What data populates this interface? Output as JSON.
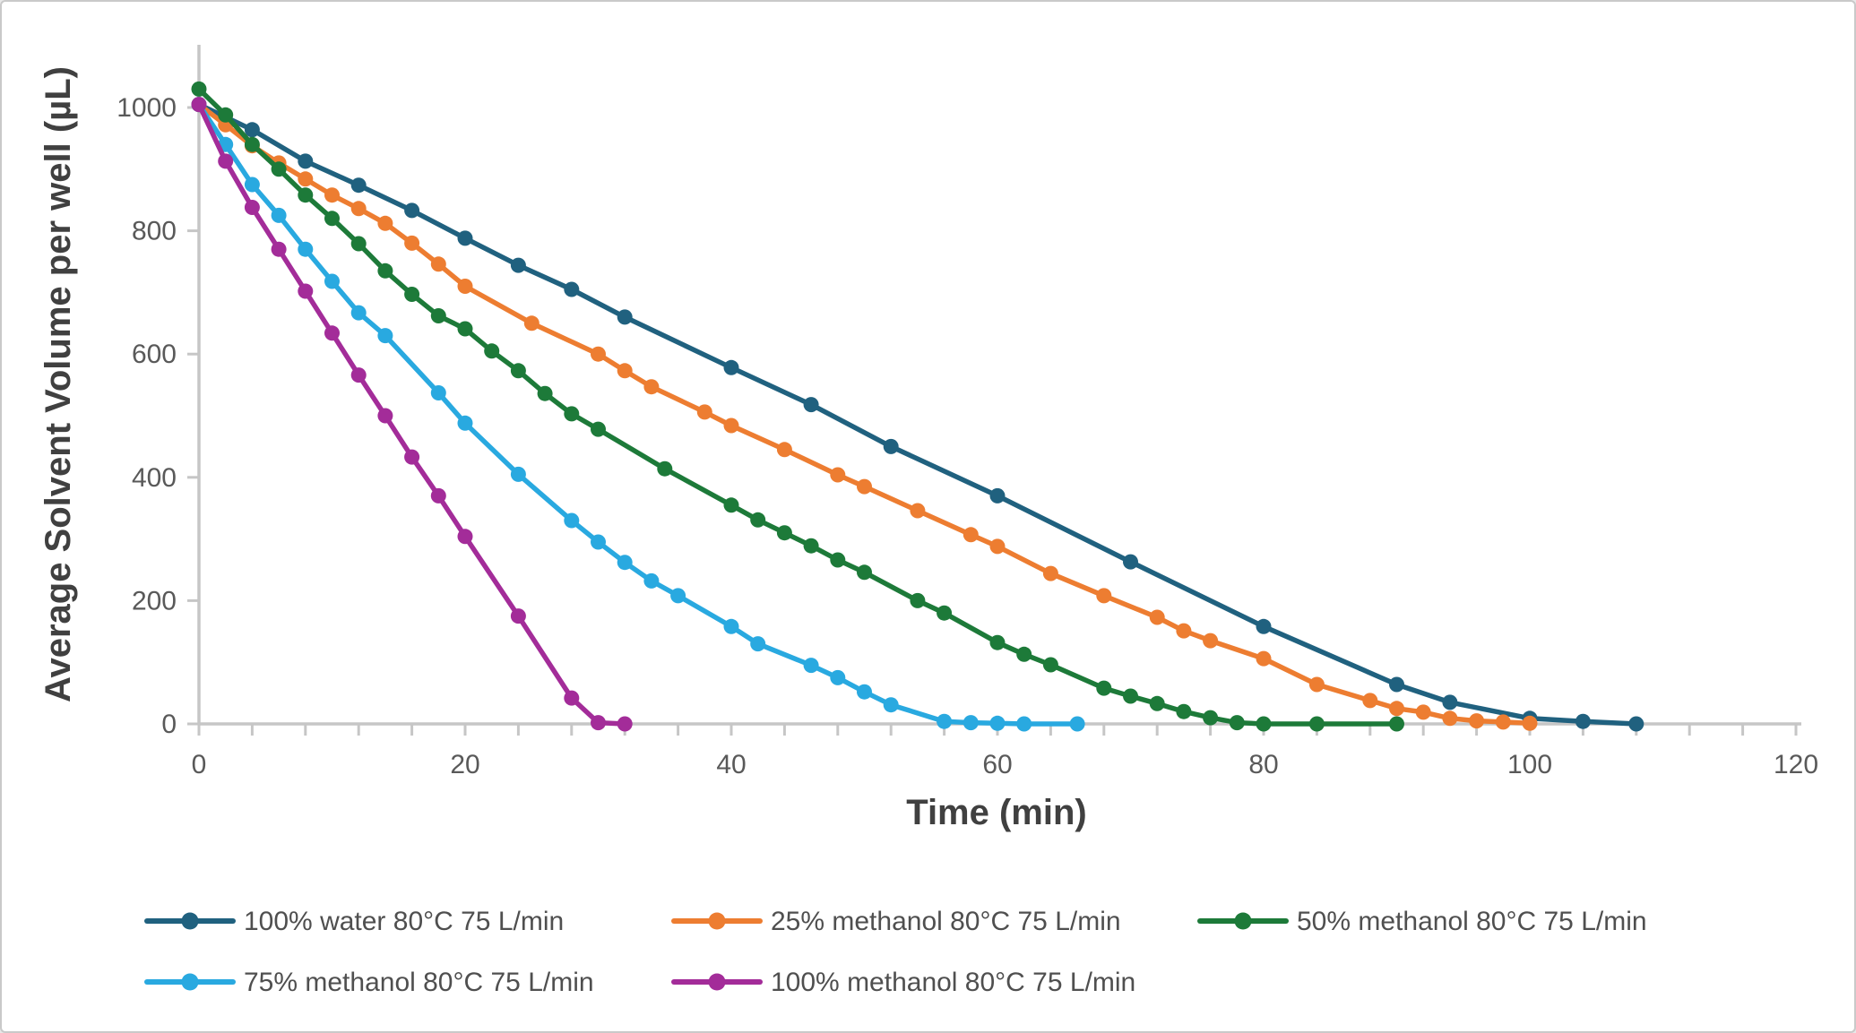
{
  "figure": {
    "background": "#ffffff",
    "border_color": "#c9c9c9"
  },
  "chart_data": {
    "type": "line",
    "title": "",
    "xlabel": "Time (min)",
    "ylabel": "Average Solvent Volume per well (µL)",
    "xlim": [
      0,
      120
    ],
    "ylim": [
      0,
      1100
    ],
    "x_major_ticks": [
      0,
      20,
      40,
      60,
      80,
      100,
      120
    ],
    "x_minor_tick_step": 4,
    "y_ticks": [
      0,
      200,
      400,
      600,
      800,
      1000
    ],
    "grid": false,
    "legend_position": "bottom-left",
    "axis_color": "#c6c6c6",
    "tick_label_color": "#595959",
    "axis_title_color": "#404040",
    "marker_style": "filled-circle",
    "series": [
      {
        "name": "100% water 80°C 75 L/min",
        "color": "#20617F",
        "points": [
          [
            0,
            1005
          ],
          [
            4,
            964
          ],
          [
            8,
            913
          ],
          [
            12,
            874
          ],
          [
            16,
            833
          ],
          [
            20,
            788
          ],
          [
            24,
            744
          ],
          [
            28,
            705
          ],
          [
            32,
            660
          ],
          [
            40,
            578
          ],
          [
            46,
            518
          ],
          [
            52,
            450
          ],
          [
            60,
            370
          ],
          [
            70,
            263
          ],
          [
            80,
            158
          ],
          [
            90,
            64
          ],
          [
            94,
            35
          ],
          [
            100,
            9
          ],
          [
            104,
            4
          ],
          [
            108,
            0
          ]
        ]
      },
      {
        "name": "25% methanol 80°C 75 L/min",
        "color": "#ED7D31",
        "points": [
          [
            0,
            1005
          ],
          [
            2,
            972
          ],
          [
            4,
            938
          ],
          [
            6,
            910
          ],
          [
            8,
            884
          ],
          [
            10,
            858
          ],
          [
            12,
            836
          ],
          [
            14,
            812
          ],
          [
            16,
            780
          ],
          [
            18,
            746
          ],
          [
            20,
            710
          ],
          [
            25,
            650
          ],
          [
            30,
            600
          ],
          [
            32,
            573
          ],
          [
            34,
            547
          ],
          [
            38,
            506
          ],
          [
            40,
            484
          ],
          [
            44,
            445
          ],
          [
            48,
            404
          ],
          [
            50,
            385
          ],
          [
            54,
            346
          ],
          [
            58,
            307
          ],
          [
            60,
            288
          ],
          [
            64,
            244
          ],
          [
            68,
            208
          ],
          [
            72,
            173
          ],
          [
            74,
            151
          ],
          [
            76,
            135
          ],
          [
            80,
            106
          ],
          [
            84,
            64
          ],
          [
            88,
            38
          ],
          [
            90,
            25
          ],
          [
            92,
            19
          ],
          [
            94,
            9
          ],
          [
            96,
            5
          ],
          [
            98,
            3
          ],
          [
            100,
            1
          ]
        ]
      },
      {
        "name": "50% methanol 80°C 75 L/min",
        "color": "#1D7A39",
        "points": [
          [
            0,
            1030
          ],
          [
            2,
            988
          ],
          [
            4,
            940
          ],
          [
            6,
            900
          ],
          [
            8,
            858
          ],
          [
            10,
            820
          ],
          [
            12,
            779
          ],
          [
            14,
            735
          ],
          [
            16,
            697
          ],
          [
            18,
            662
          ],
          [
            20,
            641
          ],
          [
            22,
            605
          ],
          [
            24,
            573
          ],
          [
            26,
            536
          ],
          [
            28,
            503
          ],
          [
            30,
            478
          ],
          [
            35,
            414
          ],
          [
            40,
            355
          ],
          [
            42,
            331
          ],
          [
            44,
            310
          ],
          [
            46,
            289
          ],
          [
            48,
            266
          ],
          [
            50,
            246
          ],
          [
            54,
            200
          ],
          [
            56,
            180
          ],
          [
            60,
            132
          ],
          [
            62,
            113
          ],
          [
            64,
            96
          ],
          [
            68,
            58
          ],
          [
            70,
            45
          ],
          [
            72,
            33
          ],
          [
            74,
            20
          ],
          [
            76,
            10
          ],
          [
            78,
            2
          ],
          [
            80,
            0
          ],
          [
            84,
            0
          ],
          [
            90,
            0
          ]
        ]
      },
      {
        "name": "75% methanol 80°C 75 L/min",
        "color": "#29A9E0",
        "points": [
          [
            0,
            1005
          ],
          [
            2,
            940
          ],
          [
            4,
            875
          ],
          [
            6,
            825
          ],
          [
            8,
            770
          ],
          [
            10,
            718
          ],
          [
            12,
            667
          ],
          [
            14,
            630
          ],
          [
            18,
            537
          ],
          [
            20,
            488
          ],
          [
            24,
            405
          ],
          [
            28,
            330
          ],
          [
            30,
            295
          ],
          [
            32,
            262
          ],
          [
            34,
            232
          ],
          [
            36,
            208
          ],
          [
            40,
            158
          ],
          [
            42,
            130
          ],
          [
            46,
            95
          ],
          [
            48,
            75
          ],
          [
            50,
            52
          ],
          [
            52,
            31
          ],
          [
            56,
            4
          ],
          [
            58,
            2
          ],
          [
            60,
            1
          ],
          [
            62,
            0
          ],
          [
            66,
            0
          ]
        ]
      },
      {
        "name": "100% methanol 80°C 75 L/min",
        "color": "#A32C99",
        "points": [
          [
            0,
            1005
          ],
          [
            2,
            913
          ],
          [
            4,
            838
          ],
          [
            6,
            770
          ],
          [
            8,
            702
          ],
          [
            10,
            634
          ],
          [
            12,
            566
          ],
          [
            14,
            500
          ],
          [
            16,
            433
          ],
          [
            18,
            370
          ],
          [
            20,
            304
          ],
          [
            24,
            175
          ],
          [
            28,
            42
          ],
          [
            30,
            2
          ],
          [
            32,
            0
          ]
        ]
      }
    ],
    "legend_rows": [
      [
        0,
        1,
        2
      ],
      [
        3,
        4
      ]
    ]
  }
}
